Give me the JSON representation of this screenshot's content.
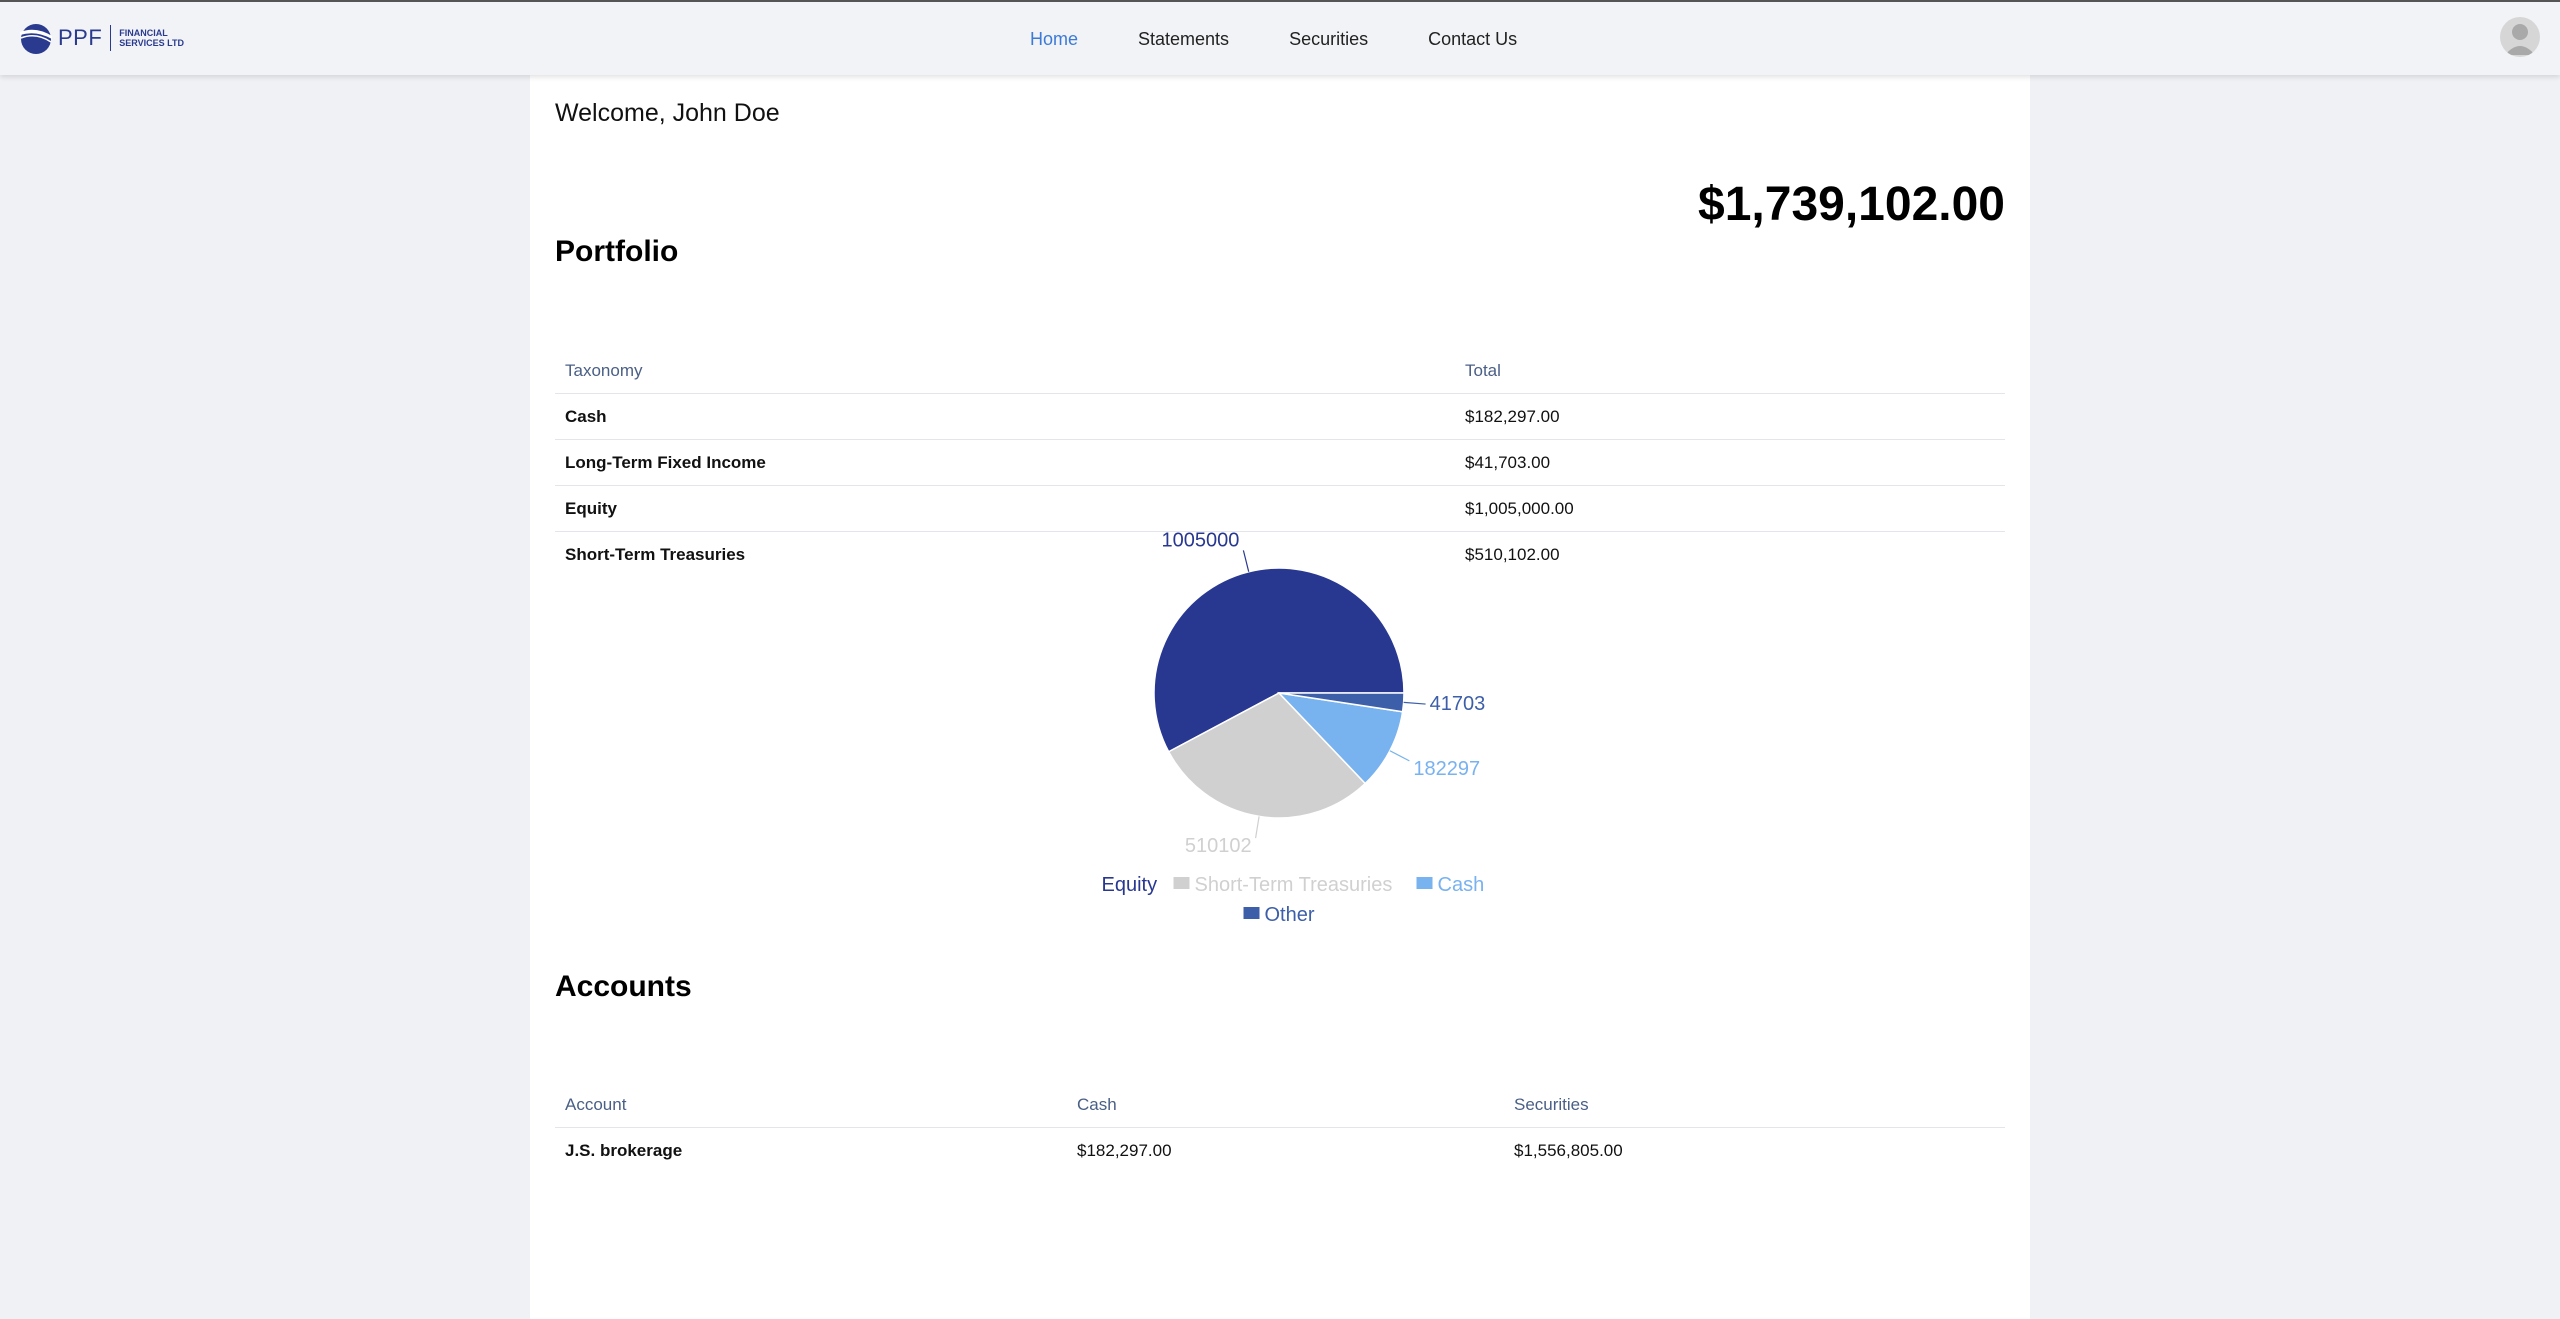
{
  "header": {
    "logo_text": "PPF",
    "logo_sub_line1": "FINANCIAL",
    "logo_sub_line2": "SERVICES LTD",
    "nav": [
      "Home",
      "Statements",
      "Securities",
      "Contact Us"
    ],
    "active_nav": "Home"
  },
  "welcome": "Welcome, John Doe",
  "portfolio_total": "$1,739,102.00",
  "portfolio": {
    "title": "Portfolio",
    "columns": [
      "Taxonomy",
      "Total"
    ],
    "rows": [
      {
        "taxonomy": "Cash",
        "total": "$182,297.00"
      },
      {
        "taxonomy": "Long-Term Fixed Income",
        "total": "$41,703.00"
      },
      {
        "taxonomy": "Equity",
        "total": "$1,005,000.00"
      },
      {
        "taxonomy": "Short-Term Treasuries",
        "total": "$510,102.00"
      }
    ]
  },
  "chart_data": {
    "type": "pie",
    "slices": [
      {
        "label": "Equity",
        "value": 1005000,
        "color": "#283891"
      },
      {
        "label": "Short-Term Treasuries",
        "value": 510102,
        "color": "#d0d0d0"
      },
      {
        "label": "Cash",
        "value": 182297,
        "color": "#78b2ef"
      },
      {
        "label": "Other",
        "value": 41703,
        "color": "#3d5ea8"
      }
    ],
    "legend": [
      "Equity",
      "Short-Term Treasuries",
      "Cash",
      "Other"
    ],
    "legend_placement": "bottom"
  },
  "accounts": {
    "title": "Accounts",
    "columns": [
      "Account",
      "Cash",
      "Securities"
    ],
    "rows": [
      {
        "account": "J.S. brokerage",
        "cash": "$182,297.00",
        "securities": "$1,556,805.00"
      }
    ]
  }
}
